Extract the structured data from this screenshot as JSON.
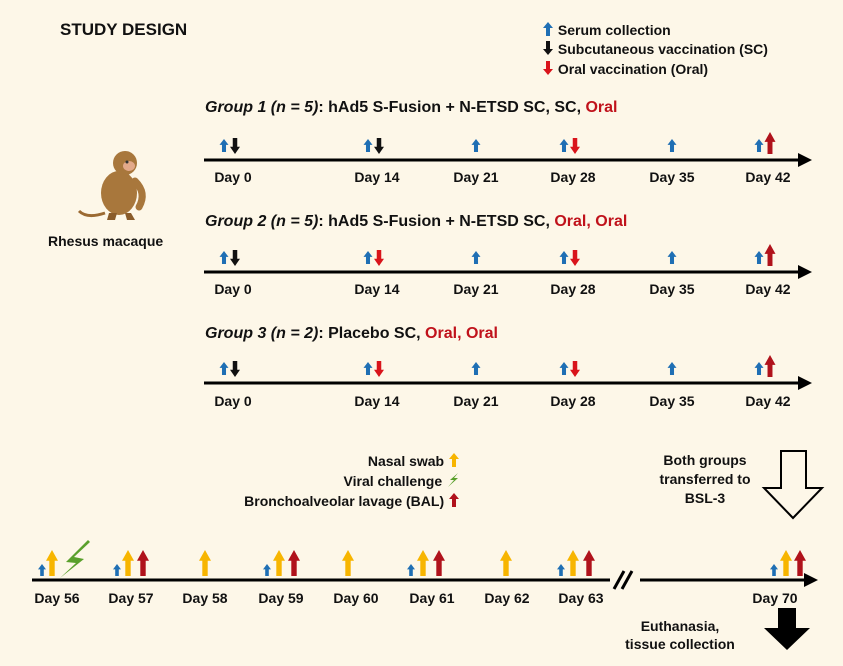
{
  "title": "STUDY DESIGN",
  "legend": {
    "serum": "Serum collection",
    "sc": "Subcutaneous vaccination (SC)",
    "oral": "Oral vaccination (Oral)"
  },
  "colors": {
    "serum": "#1f6fb4",
    "sc": "#111111",
    "oral": "#d9141b",
    "nasal": "#f7b500",
    "bal": "#b0121b",
    "challenge": "#5aa02c",
    "text_red": "#c0121b"
  },
  "animal": {
    "label": "Rhesus macaque",
    "icon": "monkey-icon"
  },
  "groups": [
    {
      "title_italic": "Group 1 (n = 5)",
      "title_plain": ": hAd5 S-Fusion + N-ETSD SC, SC, ",
      "title_red": "Oral"
    },
    {
      "title_italic": "Group 2 (n = 5)",
      "title_plain": ": hAd5 S-Fusion + N-ETSD SC, ",
      "title_red": "Oral, Oral"
    },
    {
      "title_italic": "Group 3 (n = 2)",
      "title_plain": ": Placebo SC, ",
      "title_red": "Oral, Oral"
    }
  ],
  "vaccination_days": [
    "Day 0",
    "Day 14",
    "Day 21",
    "Day 28",
    "Day 35",
    "Day 42"
  ],
  "challenge_legend": {
    "nasal": "Nasal swab",
    "viral": "Viral challenge",
    "bal": "Bronchoalveolar lavage (BAL)"
  },
  "transfer_note": [
    "Both groups",
    "transferred to",
    "BSL-3"
  ],
  "challenge_days": [
    "Day 56",
    "Day 57",
    "Day 58",
    "Day 59",
    "Day 60",
    "Day 61",
    "Day 62",
    "Day 63",
    "Day 70"
  ],
  "euthanasia_note": [
    "Euthanasia,",
    "tissue collection"
  ]
}
